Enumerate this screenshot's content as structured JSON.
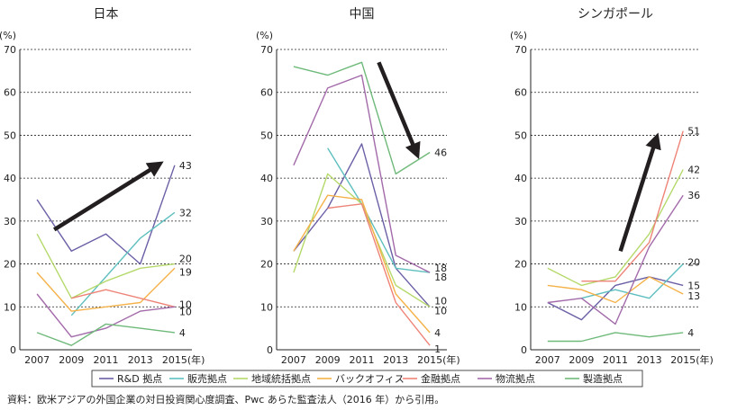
{
  "chart_data": [
    {
      "type": "line",
      "title": "日本",
      "ylabel": "(%)",
      "xlabel": "(年)",
      "ylim": [
        0,
        70
      ],
      "yticks": [
        0,
        10,
        20,
        30,
        40,
        50,
        60,
        70
      ],
      "x": [
        "2007",
        "2009",
        "2011",
        "2013",
        "2015"
      ],
      "series": [
        {
          "name": "R&D 拠点",
          "color": "#6b5fa6",
          "values": [
            35,
            23,
            27,
            20,
            43
          ],
          "end_label": "43"
        },
        {
          "name": "販売拠点",
          "color": "#5fbfbf",
          "values": [
            null,
            8,
            17,
            26,
            32
          ],
          "end_label": "32"
        },
        {
          "name": "地域統括拠点",
          "color": "#b5d96b",
          "values": [
            27,
            12,
            16,
            19,
            20
          ],
          "end_label": "20"
        },
        {
          "name": "バックオフィス",
          "color": "#f5b24a",
          "values": [
            18,
            9,
            10,
            11,
            19
          ],
          "end_label": "19"
        },
        {
          "name": "金融拠点",
          "color": "#ee8377",
          "values": [
            null,
            12,
            14,
            12,
            10
          ],
          "end_label": "10"
        },
        {
          "name": "物流拠点",
          "color": "#a36aaa",
          "values": [
            13,
            3,
            5,
            9,
            10
          ],
          "end_label": "10"
        },
        {
          "name": "製造拠点",
          "color": "#6fb97a",
          "values": [
            4,
            1,
            6,
            5,
            4
          ],
          "end_label": "4"
        }
      ],
      "arrow": {
        "from": [
          2008,
          28
        ],
        "to": [
          2014,
          43
        ]
      }
    },
    {
      "type": "line",
      "title": "中国",
      "ylabel": "(%)",
      "xlabel": "(年)",
      "ylim": [
        0,
        70
      ],
      "yticks": [
        0,
        10,
        20,
        30,
        40,
        50,
        60,
        70
      ],
      "x": [
        "2007",
        "2009",
        "2011",
        "2013",
        "2015"
      ],
      "series": [
        {
          "name": "R&D 拠点",
          "color": "#6b5fa6",
          "values": [
            23,
            33,
            48,
            19,
            10
          ],
          "end_label": "10"
        },
        {
          "name": "販売拠点",
          "color": "#5fbfbf",
          "values": [
            null,
            47,
            34,
            19,
            18
          ],
          "end_label": "18"
        },
        {
          "name": "地域統括拠点",
          "color": "#b5d96b",
          "values": [
            18,
            41,
            34,
            15,
            10
          ],
          "end_label": "10"
        },
        {
          "name": "バックオフィス",
          "color": "#f5b24a",
          "values": [
            23,
            36,
            35,
            13,
            4
          ],
          "end_label": "4"
        },
        {
          "name": "金融拠点",
          "color": "#ee8377",
          "values": [
            null,
            33,
            34,
            11,
            1
          ],
          "end_label": "1"
        },
        {
          "name": "物流拠点",
          "color": "#a36aaa",
          "values": [
            43,
            61,
            64,
            22,
            18
          ],
          "end_label": "18"
        },
        {
          "name": "製造拠点",
          "color": "#6fb97a",
          "values": [
            66,
            64,
            67,
            41,
            46
          ],
          "end_label": "46"
        }
      ],
      "arrow": {
        "from": [
          2012,
          67
        ],
        "to": [
          2014.2,
          46
        ]
      }
    },
    {
      "type": "line",
      "title": "シンガポール",
      "ylabel": "(%)",
      "xlabel": "(年)",
      "ylim": [
        0,
        70
      ],
      "yticks": [
        0,
        10,
        20,
        30,
        40,
        50,
        60,
        70
      ],
      "x": [
        "2007",
        "2009",
        "2011",
        "2013",
        "2015"
      ],
      "series": [
        {
          "name": "R&D 拠点",
          "color": "#6b5fa6",
          "values": [
            11,
            7,
            15,
            17,
            15
          ],
          "end_label": "15"
        },
        {
          "name": "販売拠点",
          "color": "#5fbfbf",
          "values": [
            null,
            12,
            14,
            12,
            20
          ],
          "end_label": "20"
        },
        {
          "name": "地域統括拠点",
          "color": "#b5d96b",
          "values": [
            19,
            15,
            17,
            27,
            42
          ],
          "end_label": "42"
        },
        {
          "name": "バックオフィス",
          "color": "#f5b24a",
          "values": [
            15,
            14,
            11,
            17,
            13
          ],
          "end_label": "13"
        },
        {
          "name": "金融拠点",
          "color": "#ee8377",
          "values": [
            null,
            16,
            16,
            25,
            51
          ],
          "end_label": "51"
        },
        {
          "name": "物流拠点",
          "color": "#a36aaa",
          "values": [
            11,
            12,
            6,
            24,
            36
          ],
          "end_label": "36"
        },
        {
          "name": "製造拠点",
          "color": "#6fb97a",
          "values": [
            2,
            2,
            4,
            3,
            4
          ],
          "end_label": "4"
        }
      ],
      "arrow": {
        "from": [
          2011.3,
          23
        ],
        "to": [
          2013.4,
          49
        ]
      }
    }
  ],
  "legend": [
    {
      "name": "R&D 拠点",
      "color": "#6b5fa6"
    },
    {
      "name": "販売拠点",
      "color": "#5fbfbf"
    },
    {
      "name": "地域統括拠点",
      "color": "#b5d96b"
    },
    {
      "name": "バックオフィス",
      "color": "#f5b24a"
    },
    {
      "name": "金融拠点",
      "color": "#ee8377"
    },
    {
      "name": "物流拠点",
      "color": "#a36aaa"
    },
    {
      "name": "製造拠点",
      "color": "#6fb97a"
    }
  ],
  "source_note": "資料：欧米アジアの外国企業の対日投資関心度調査、Pwc あらた監査法人（2016 年）から引用。"
}
